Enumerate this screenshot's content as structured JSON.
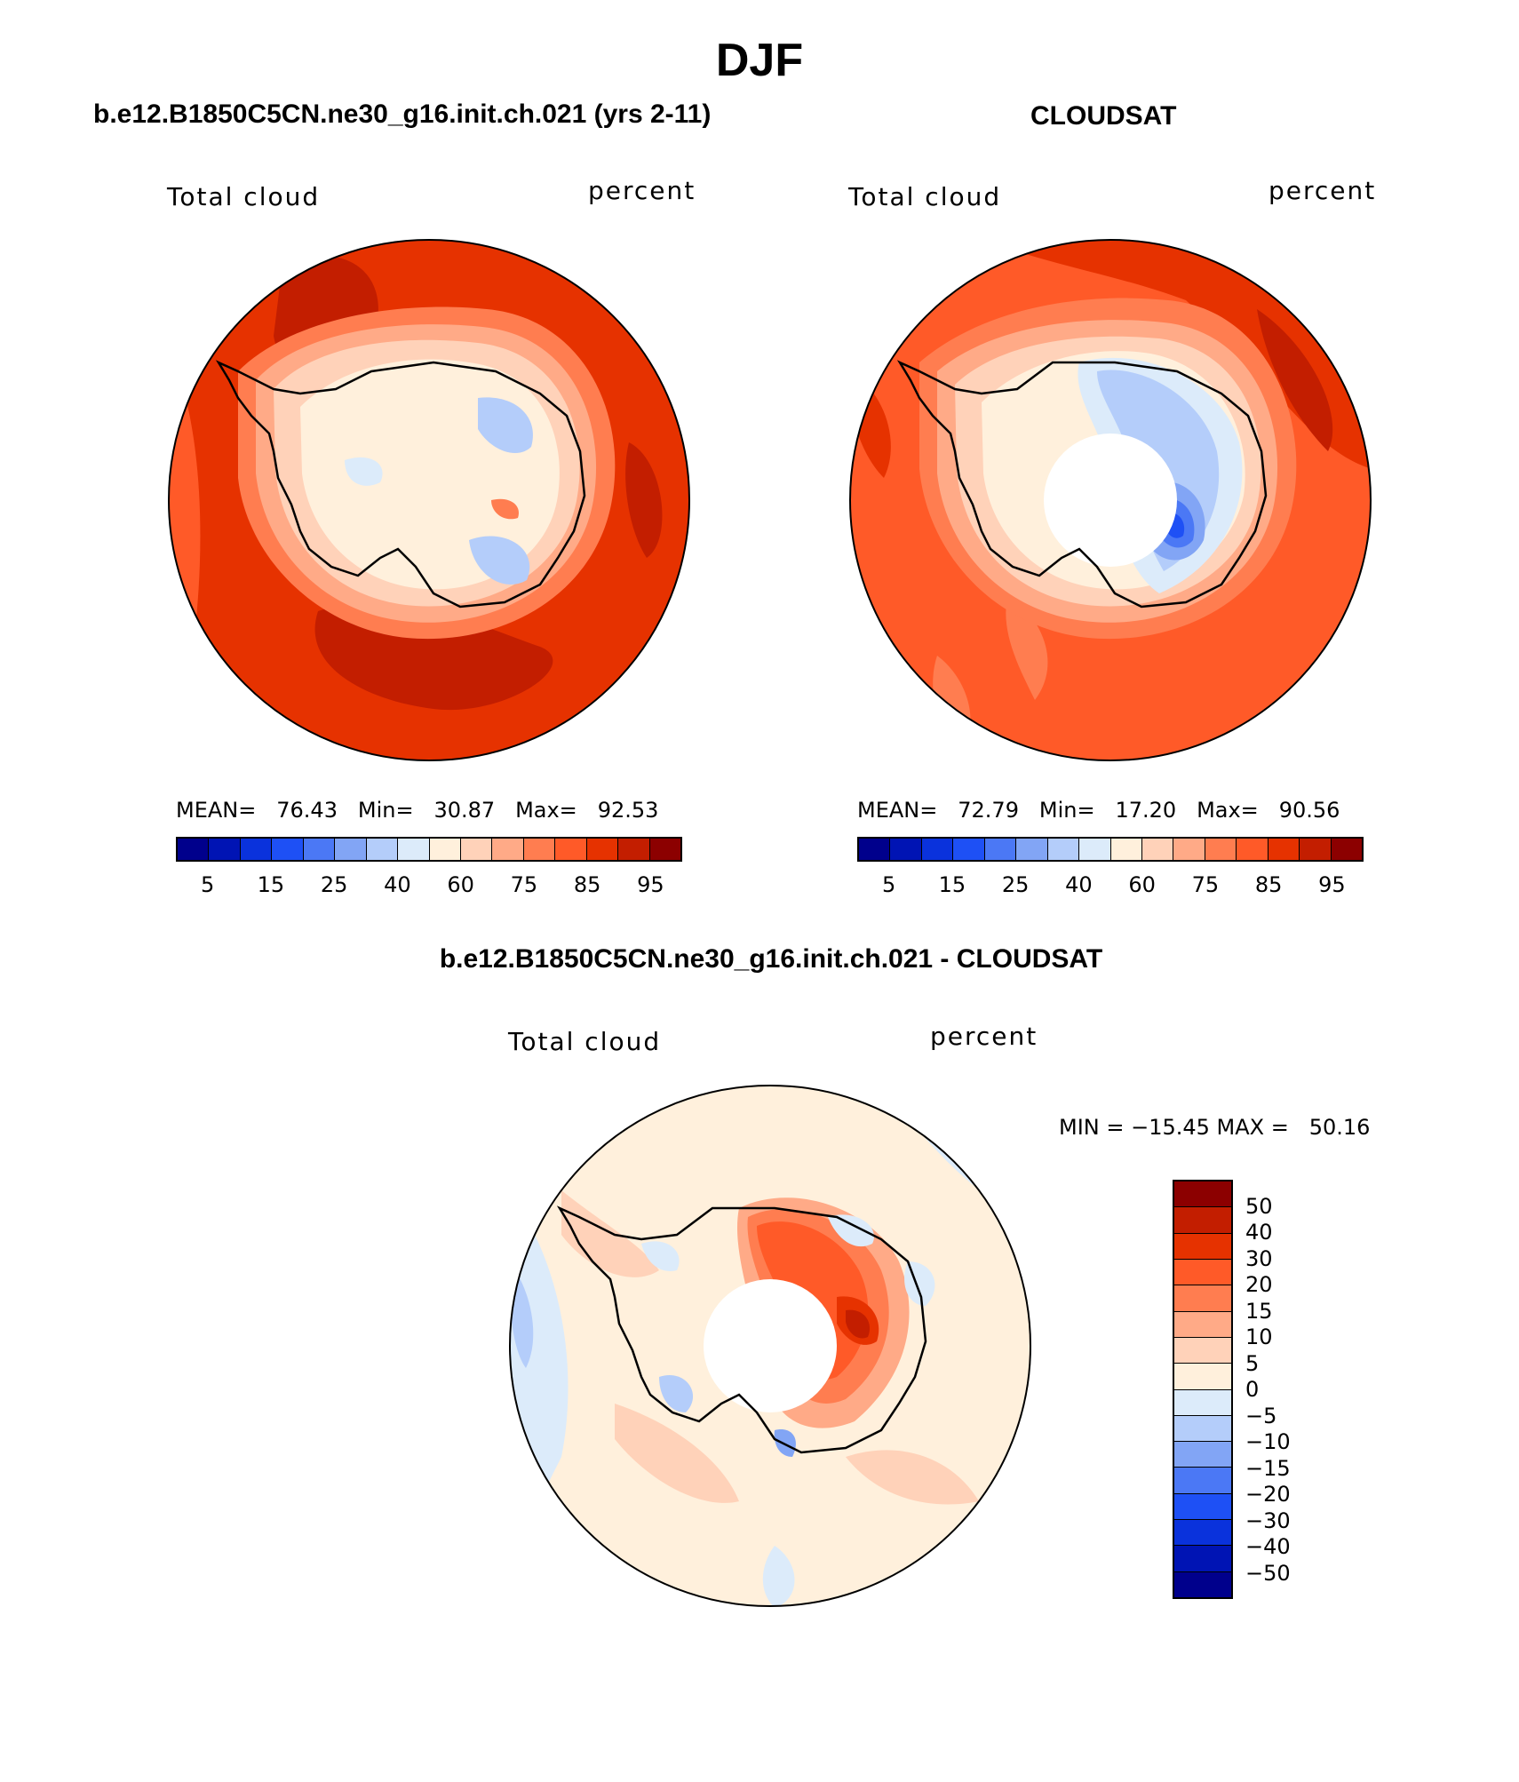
{
  "title": "DJF",
  "panels": [
    {
      "title": "b.e12.B1850C5CN.ne30_g16.init.ch.021 (yrs 2-11)",
      "variable": "Total cloud",
      "units": "percent",
      "mean_label": "MEAN=",
      "mean": "76.43",
      "min_label": "Min=",
      "min": "30.87",
      "max_label": "Max=",
      "max": "92.53"
    },
    {
      "title": "CLOUDSAT",
      "variable": "Total cloud",
      "units": "percent",
      "mean_label": "MEAN=",
      "mean": "72.79",
      "min_label": "Min=",
      "min": "17.20",
      "max_label": "Max=",
      "max": "90.56"
    }
  ],
  "diff": {
    "title": "b.e12.B1850C5CN.ne30_g16.init.ch.021 - CLOUDSAT",
    "variable": "Total cloud",
    "units": "percent",
    "minmax_text": "MIN = −15.45 MAX =   50.16"
  },
  "colorbar_abs": {
    "colors": [
      "#00008c",
      "#0014b4",
      "#0a32dc",
      "#1e50f5",
      "#4b78f5",
      "#82a5f5",
      "#b4cdfa",
      "#dcebfa",
      "#fff0dc",
      "#ffd2b9",
      "#ffaa87",
      "#ff7d50",
      "#ff5a28",
      "#e63200",
      "#c31e00",
      "#8c0000"
    ],
    "labels": [
      "5",
      "15",
      "25",
      "40",
      "60",
      "75",
      "85",
      "95"
    ]
  },
  "colorbar_diff": {
    "colors": [
      "#8c0000",
      "#c31e00",
      "#e63200",
      "#ff5a28",
      "#ff7d50",
      "#ffaa87",
      "#ffd2b9",
      "#fff0dc",
      "#dcebfa",
      "#b4cdfa",
      "#82a5f5",
      "#4b78f5",
      "#1e50f5",
      "#0a32dc",
      "#0014b4",
      "#00008c"
    ],
    "labels": [
      "50",
      "40",
      "30",
      "20",
      "15",
      "10",
      "5",
      "0",
      "−5",
      "−10",
      "−15",
      "−20",
      "−30",
      "−40",
      "−50"
    ]
  }
}
